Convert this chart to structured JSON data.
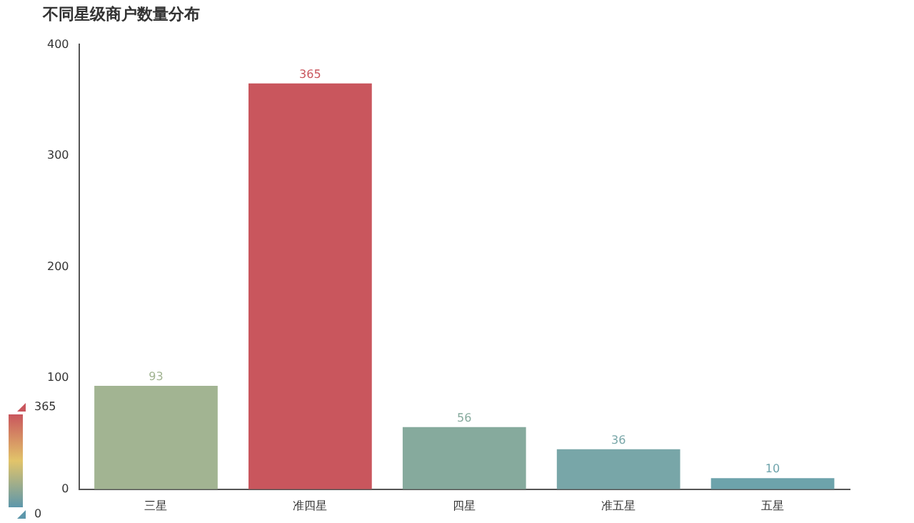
{
  "chart_data": {
    "type": "bar",
    "title": "不同星级商户数量分布",
    "categories": [
      "三星",
      "准四星",
      "四星",
      "准五星",
      "五星"
    ],
    "values": [
      93,
      365,
      56,
      36,
      10
    ],
    "colors": [
      "#a2b492",
      "#c9565d",
      "#86aa9d",
      "#78a6a8",
      "#6da3ab"
    ],
    "ylim": [
      0,
      400
    ],
    "yticks": [
      0,
      100,
      200,
      300,
      400
    ],
    "clim": [
      0,
      365
    ],
    "cticks": [
      0,
      365
    ],
    "data_labels": true,
    "grid": false,
    "legend": false
  }
}
